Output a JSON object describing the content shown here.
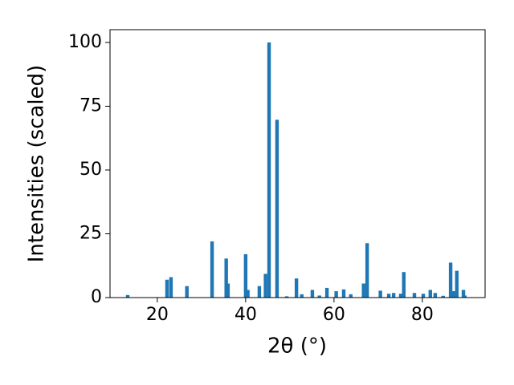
{
  "chart_data": {
    "type": "bar",
    "x_label": "2θ (°)",
    "y_label": "Intensities (scaled)",
    "x": [
      13.3,
      22.2,
      23.1,
      26.7,
      32.4,
      35.6,
      36.0,
      40.0,
      40.5,
      43.1,
      44.5,
      45.3,
      47.1,
      49.3,
      51.5,
      52.7,
      55.1,
      56.7,
      58.4,
      60.5,
      62.2,
      63.8,
      66.7,
      67.5,
      70.5,
      72.4,
      73.5,
      75.1,
      75.8,
      78.2,
      80.2,
      81.8,
      82.9,
      84.7,
      86.4,
      87.1,
      87.8,
      89.3,
      89.6
    ],
    "values": [
      1,
      7,
      8,
      4.5,
      22,
      15.3,
      5.5,
      17,
      3,
      4.5,
      9.3,
      100,
      69.7,
      0.5,
      7.5,
      1.3,
      3,
      0.8,
      3.8,
      2.5,
      3.2,
      1.3,
      5.5,
      21.3,
      2.7,
      1.5,
      1.8,
      1.5,
      10,
      1.8,
      1.5,
      3,
      1.8,
      0.7,
      13.7,
      2.5,
      10.5,
      3,
      0.8
    ],
    "color": "#1f77b4",
    "xlim": [
      9.3,
      94.2
    ],
    "xticks": [
      20,
      40,
      60,
      80
    ],
    "ylim": [
      0,
      105
    ],
    "yticks": [
      0,
      25,
      50,
      75,
      100
    ]
  }
}
